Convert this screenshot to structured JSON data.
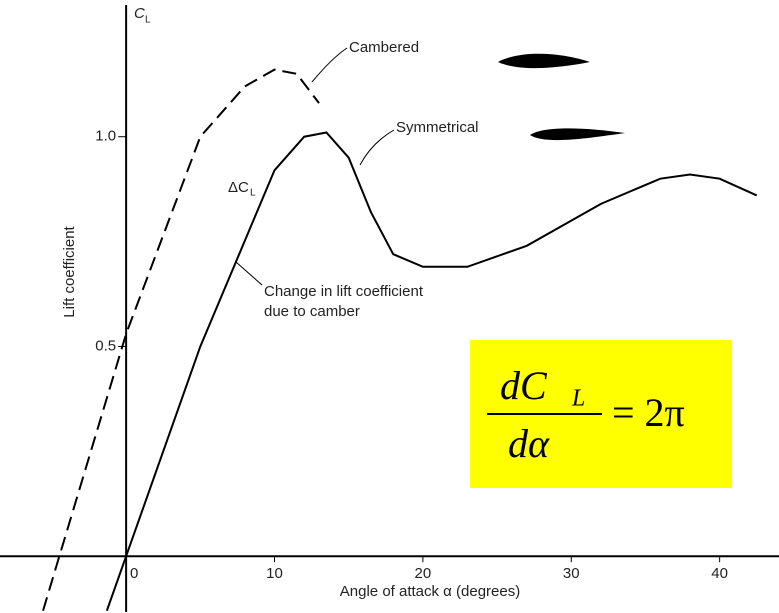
{
  "chart_data": {
    "type": "line",
    "y_axis_symbol": "C",
    "y_axis_symbol_sub": "L",
    "ylabel": "Lift coefficient",
    "xlabel": "Angle of attack α (degrees)",
    "xlim": [
      -8.5,
      44
    ],
    "ylim": [
      -0.133,
      1.314
    ],
    "xticks": [
      0,
      10,
      20,
      30,
      40
    ],
    "yticks": [
      0.5,
      {
        "value": 1,
        "label": "1.0"
      }
    ],
    "grid": false,
    "series": [
      {
        "name": "Cambered",
        "color": "#000000",
        "dash": true,
        "x": [
          -5.6,
          -4.5,
          0,
          5,
          8,
          10,
          11.5,
          13
        ],
        "values": [
          -0.13,
          0,
          0.53,
          1.0,
          1.12,
          1.16,
          1.15,
          1.08
        ]
      },
      {
        "name": "Symmetrical",
        "color": "#000000",
        "dash": false,
        "x": [
          -1.3,
          0,
          5,
          10,
          12,
          13.5,
          15,
          16.5,
          18,
          20,
          23,
          27,
          32,
          36,
          38,
          40,
          42.5
        ],
        "values": [
          -0.13,
          0,
          0.5,
          0.92,
          1.0,
          1.01,
          0.95,
          0.82,
          0.72,
          0.69,
          0.69,
          0.74,
          0.84,
          0.9,
          0.91,
          0.9,
          0.86
        ]
      }
    ],
    "annotations": {
      "delta": "ΔC",
      "delta_sub": "L",
      "camber_note": [
        "Change in lift coefficient",
        "due to camber"
      ]
    },
    "formula": {
      "numerator": "dC",
      "numerator_sub": "L",
      "denominator": "dα",
      "rhs": "= 2π"
    }
  }
}
